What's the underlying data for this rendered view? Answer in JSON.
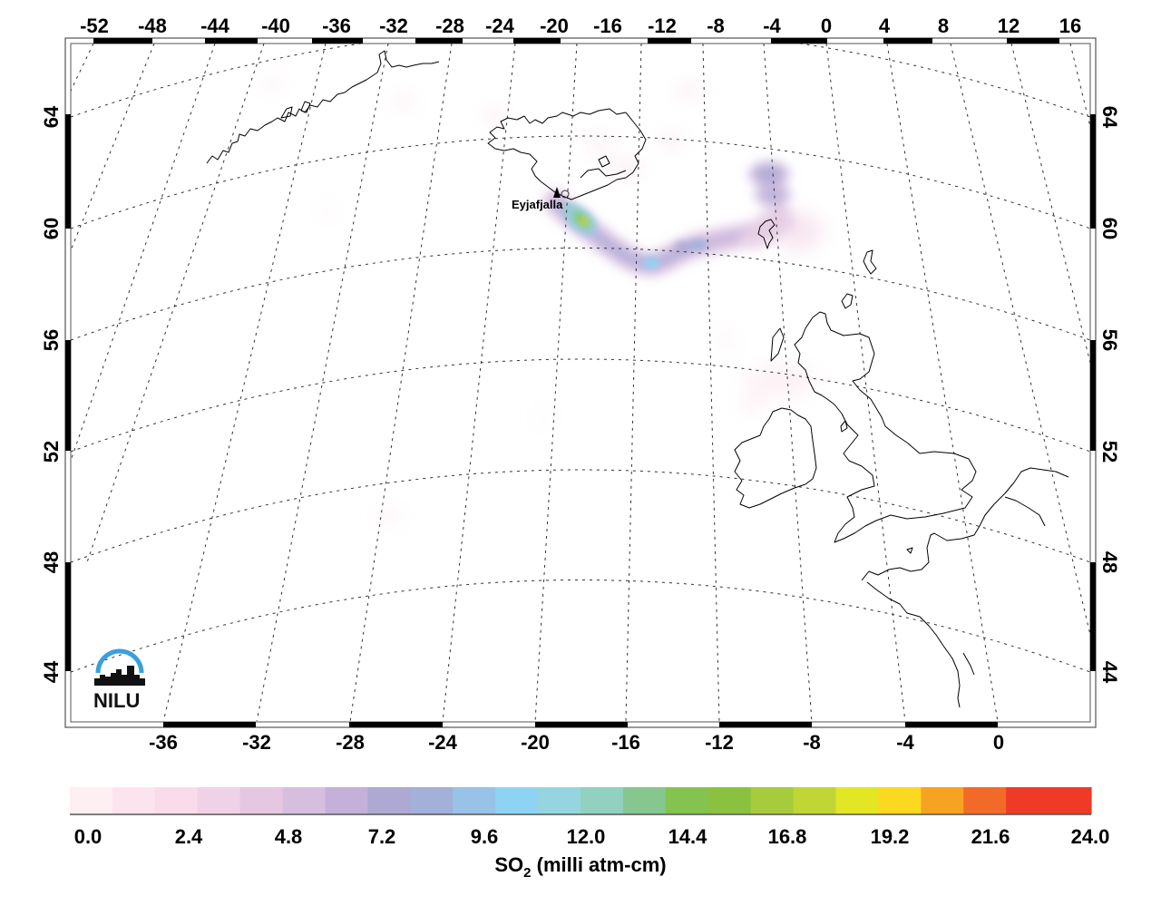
{
  "chart_data": {
    "type": "heatmap",
    "title": "",
    "subtitle": "",
    "map": {
      "projection": "conic (Lambert-like), North Atlantic / NW Europe",
      "top_lon_ticks": [
        "-52",
        "-48",
        "-44",
        "-40",
        "-36",
        "-32",
        "-28",
        "-24",
        "-20",
        "-16",
        "-12",
        "-8",
        "-4",
        "0",
        "4",
        "8",
        "12",
        "16"
      ],
      "bottom_lon_ticks": [
        "-36",
        "-32",
        "-28",
        "-24",
        "-20",
        "-16",
        "-12",
        "-8",
        "-4",
        "0"
      ],
      "left_lat_ticks": [
        "64",
        "60",
        "56",
        "52",
        "48",
        "44"
      ],
      "right_lat_ticks": [
        "64",
        "60",
        "56",
        "52",
        "48",
        "44"
      ],
      "graticule": "dashed, 4° spacing",
      "regions_outlined": [
        "Greenland (SE coast)",
        "Iceland",
        "Faroe Islands",
        "Shetland/Orkney",
        "Ireland",
        "Great Britain",
        "France (NW coast)",
        "Belgium/Netherlands coast"
      ],
      "volcano_marker": {
        "label": "Eyjafjalla",
        "symbol": "black triangle",
        "approx_lon": -19.6,
        "approx_lat": 63.6
      }
    },
    "plume": {
      "description": "SO2 plume extending SE from Eyjafjallajökull, then E/NE toward the Faroe Islands",
      "peak_value_approx": 17,
      "points": [
        {
          "lon": -18.5,
          "lat": 63.0,
          "value": 16
        },
        {
          "lon": -17.5,
          "lat": 62.3,
          "value": 12
        },
        {
          "lon": -15.5,
          "lat": 61.2,
          "value": 8
        },
        {
          "lon": -14.0,
          "lat": 60.6,
          "value": 11
        },
        {
          "lon": -12.0,
          "lat": 61.2,
          "value": 7
        },
        {
          "lon": -10.0,
          "lat": 61.5,
          "value": 5
        },
        {
          "lon": -7.5,
          "lat": 63.0,
          "value": 7
        },
        {
          "lon": -7.5,
          "lat": 62.3,
          "value": 6
        }
      ]
    },
    "colorbar": {
      "label": "SO2 (milli atm-cm)",
      "label_main": "SO",
      "label_sub": "2",
      "label_rest": " (milli atm-cm)",
      "min": 0.0,
      "max": 24.0,
      "tick_labels": [
        "0.0",
        "2.4",
        "4.8",
        "7.2",
        "9.6",
        "12.0",
        "14.4",
        "16.8",
        "19.2",
        "21.6",
        "24.0"
      ],
      "colors": [
        "#fdf0f2",
        "#fce4ee",
        "#f9dbe9",
        "#f0d2e6",
        "#e6c7e1",
        "#d6bedf",
        "#c4b0d8",
        "#aea9d2",
        "#a2b0da",
        "#98c2e6",
        "#8fd3f4",
        "#95d5df",
        "#92d0c0",
        "#86c78f",
        "#84c34f",
        "#8ac240",
        "#a6cc3d",
        "#bfd634",
        "#e2e624",
        "#fcd91e",
        "#f6a321",
        "#f26a27",
        "#ee3a26",
        "#ee3a26"
      ]
    },
    "logo": {
      "text": "NILU"
    }
  }
}
